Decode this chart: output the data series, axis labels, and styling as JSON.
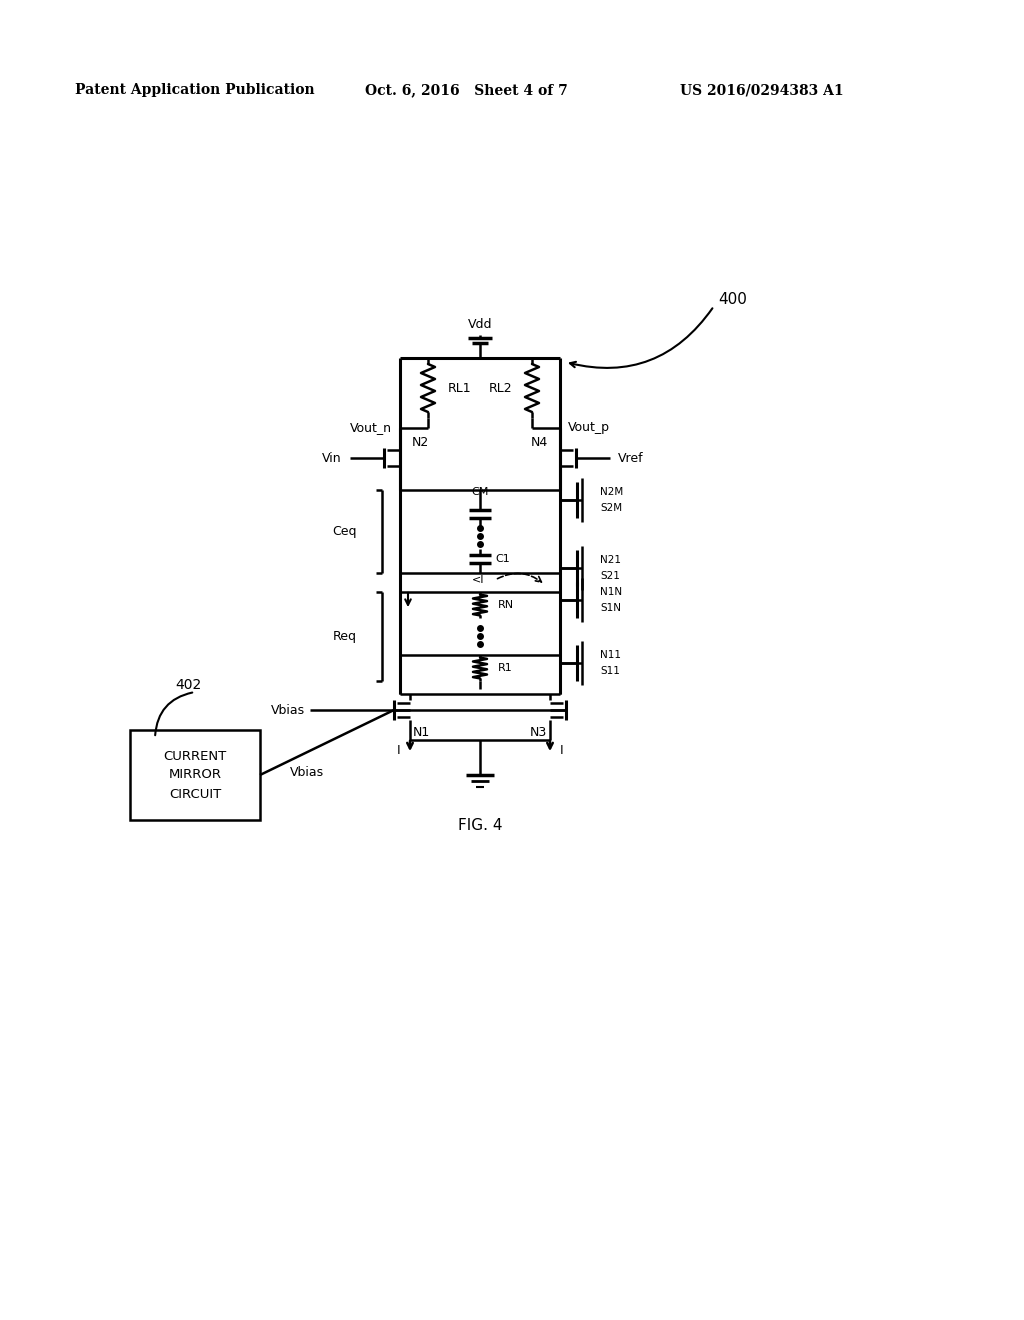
{
  "bg_color": "#ffffff",
  "text_color": "#000000",
  "header_left": "Patent Application Publication",
  "header_center": "Oct. 6, 2016   Sheet 4 of 7",
  "header_right": "US 2016/0294383 A1",
  "fig_label": "FIG. 4",
  "circuit_label": "400",
  "block_label": "402",
  "block_text": "CURRENT\nMIRROR\nCIRCUIT"
}
